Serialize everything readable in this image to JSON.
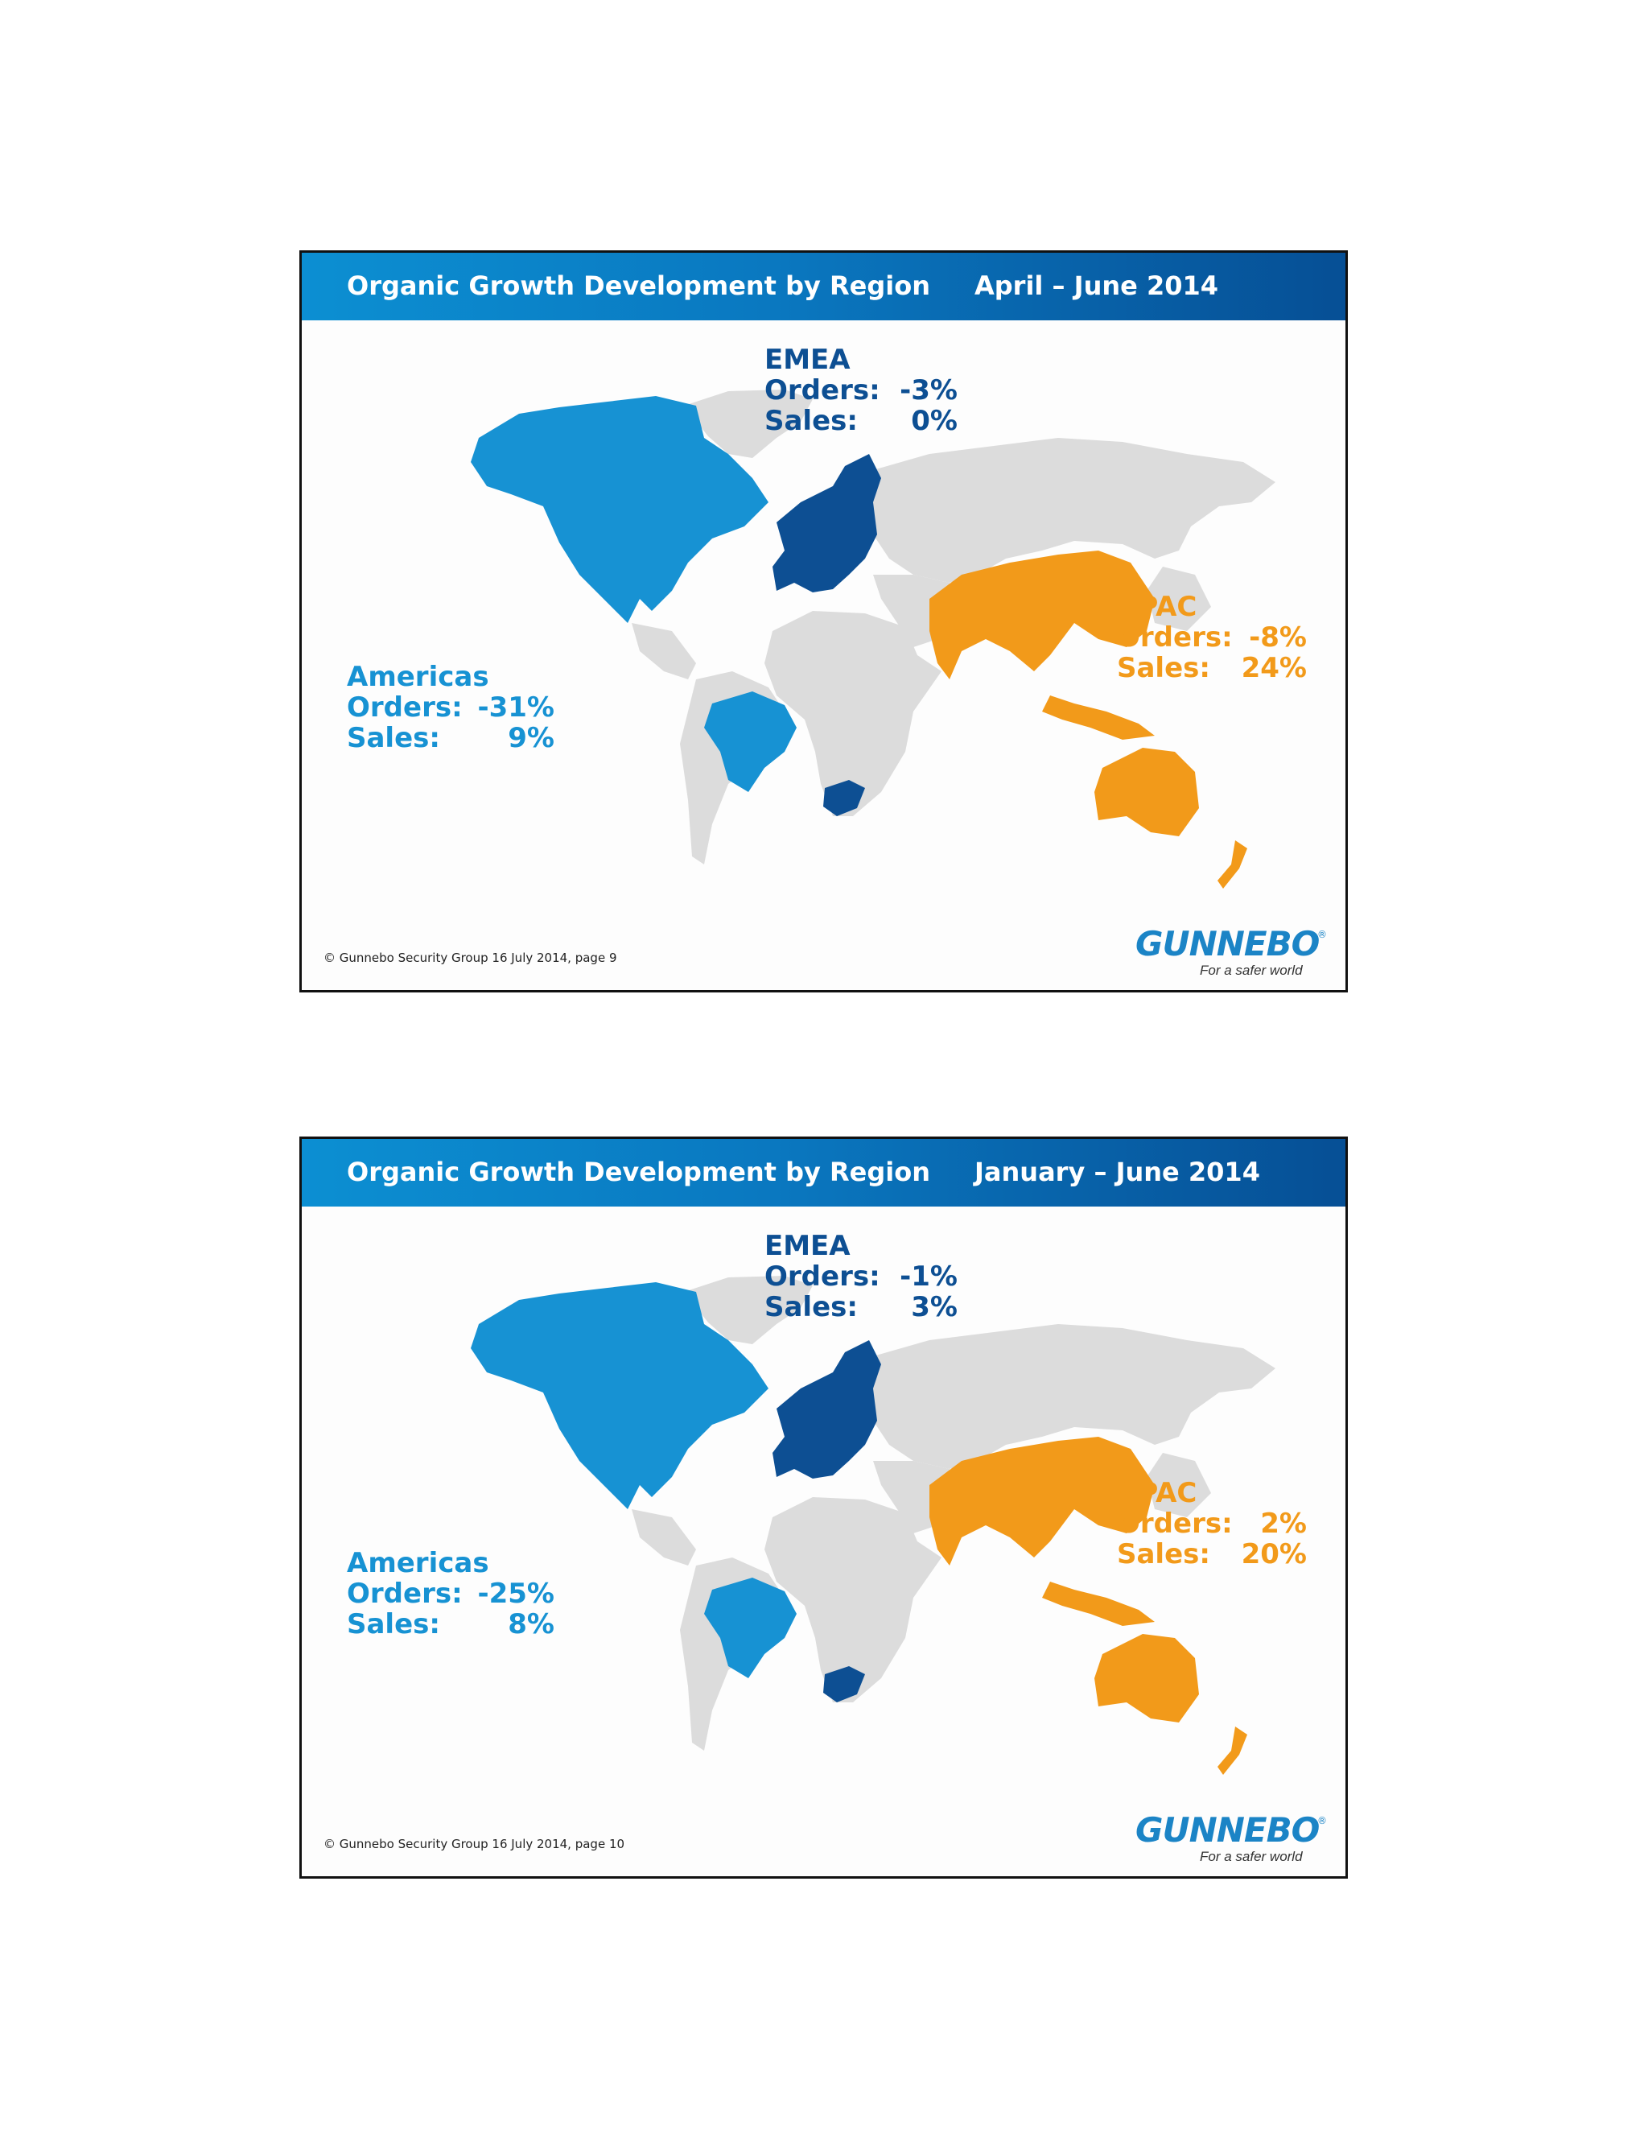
{
  "slides": [
    {
      "title": "Organic Growth Development by Region",
      "period": "April – June  2014",
      "emea": {
        "name": "EMEA",
        "orders_label": "Orders:",
        "orders": "-3%",
        "sales_label": "Sales:",
        "sales": "0%"
      },
      "americas": {
        "name": "Americas",
        "orders_label": "Orders:",
        "orders": "-31%",
        "sales_label": "Sales:",
        "sales": "9%"
      },
      "apac": {
        "name": "APAC",
        "orders_label": "Orders:",
        "orders": "-8%",
        "sales_label": "Sales:",
        "sales": "24%"
      },
      "footer": "© Gunnebo Security Group 16 July 2014, page 9",
      "logo": {
        "brand": "GUNNEBO",
        "reg": "®",
        "tagline": "For a safer world"
      }
    },
    {
      "title": "Organic Growth Development by Region",
      "period": "January – June  2014",
      "emea": {
        "name": "EMEA",
        "orders_label": "Orders:",
        "orders": "-1%",
        "sales_label": "Sales:",
        "sales": "3%"
      },
      "americas": {
        "name": "Americas",
        "orders_label": "Orders:",
        "orders": "-25%",
        "sales_label": "Sales:",
        "sales": "8%"
      },
      "apac": {
        "name": "APAC",
        "orders_label": "Orders:",
        "orders": "2%",
        "sales_label": "Sales:",
        "sales": "20%"
      },
      "footer": "© Gunnebo Security Group 16 July 2014, page 10",
      "logo": {
        "brand": "GUNNEBO",
        "reg": "®",
        "tagline": "For a safer world"
      }
    }
  ],
  "colors": {
    "header_start": "#0c8fd2",
    "header_end": "#064f95",
    "americas": "#1792d3",
    "emea": "#0d4f93",
    "apac": "#f29a1a",
    "land_other": "#dcdcdc"
  }
}
